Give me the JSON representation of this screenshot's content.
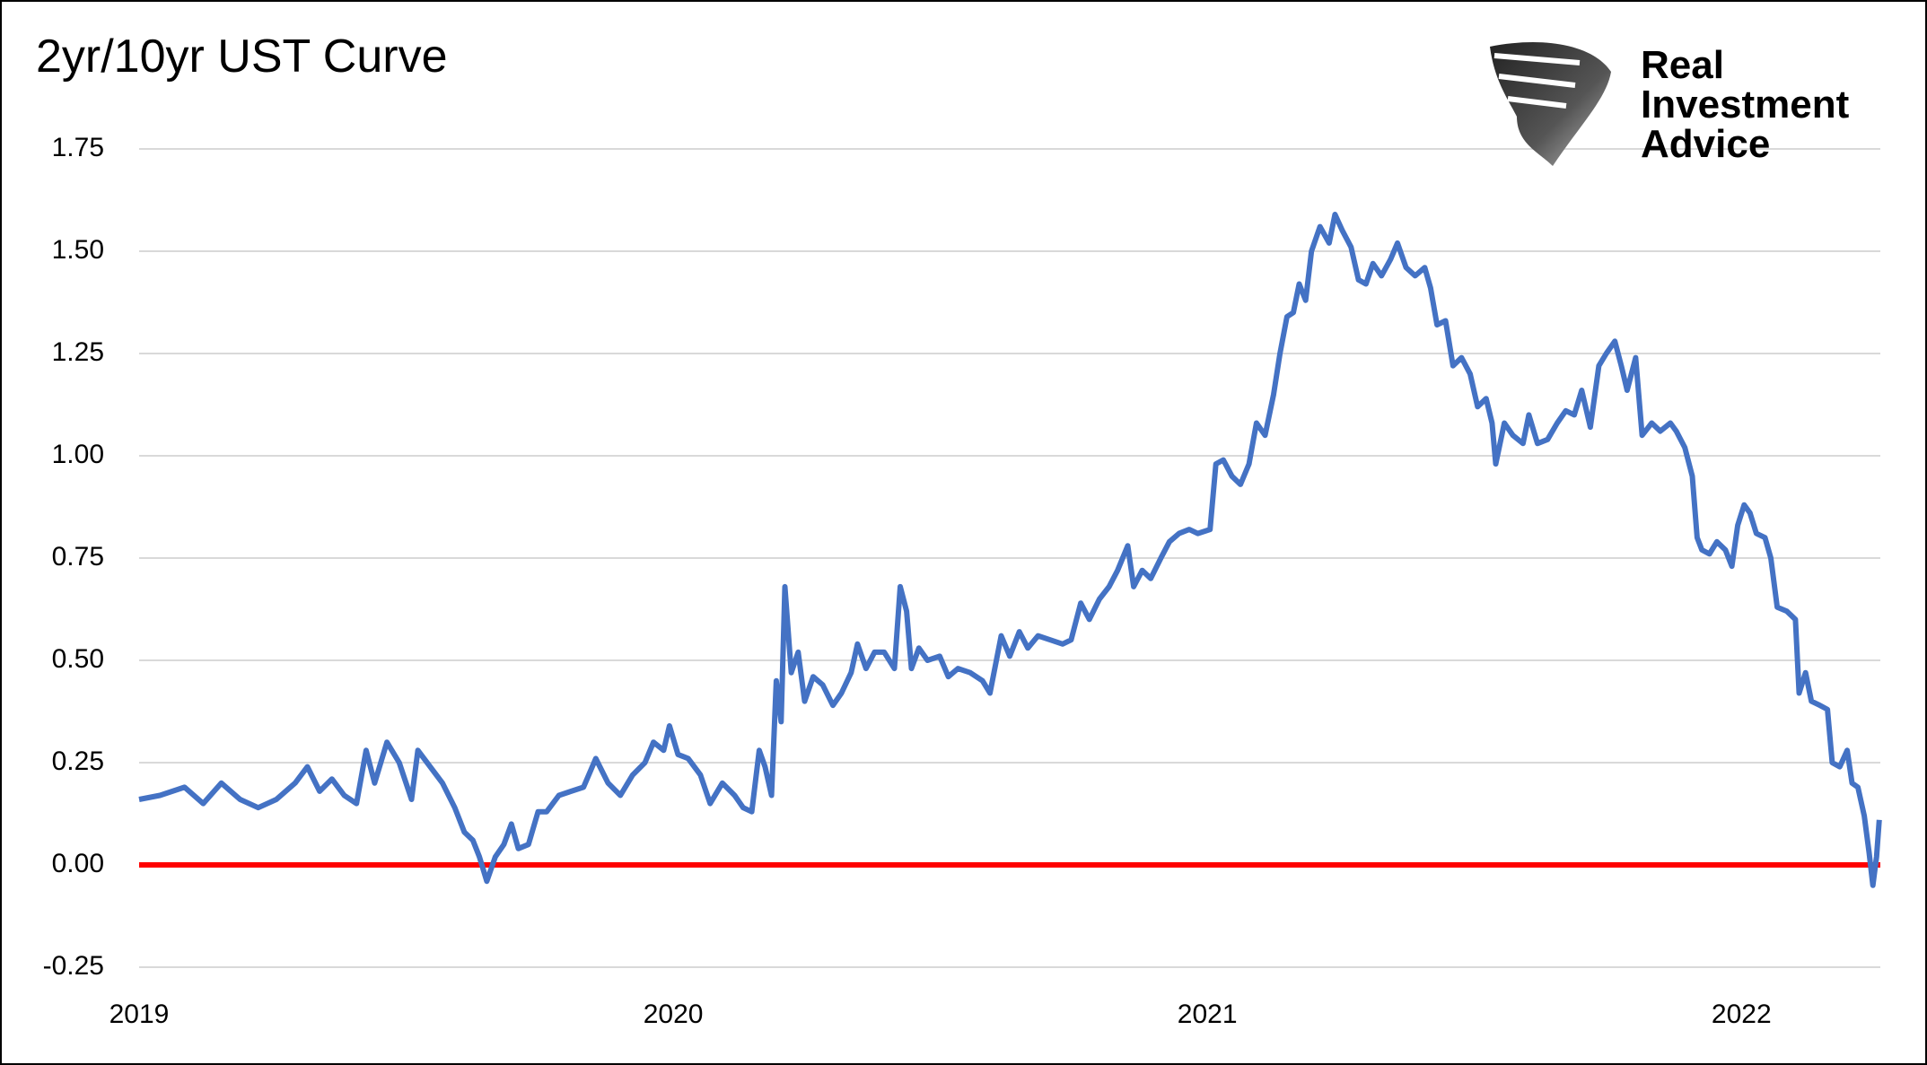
{
  "chart_data": {
    "type": "line",
    "title": "2yr/10yr UST Curve",
    "logo_text": [
      "Real",
      "Investment",
      "Advice"
    ],
    "xlim": [
      2019,
      2022.26
    ],
    "xticks": [
      2019,
      2020,
      2021,
      2022
    ],
    "ylim": [
      -0.25,
      1.75
    ],
    "yticks": [
      {
        "value": -0.25,
        "label": "-0.25"
      },
      {
        "value": 0,
        "label": "0.00"
      },
      {
        "value": 0.25,
        "label": "0.25"
      },
      {
        "value": 0.5,
        "label": "0.50"
      },
      {
        "value": 0.75,
        "label": "0.75"
      },
      {
        "value": 1,
        "label": "1.00"
      },
      {
        "value": 1.25,
        "label": "1.25"
      },
      {
        "value": 1.5,
        "label": "1.50"
      },
      {
        "value": 1.75,
        "label": "1.75"
      }
    ],
    "grid": true,
    "reference_line": {
      "value": 0,
      "color": "#ff0000"
    },
    "x": [
      2019.0,
      2019.039,
      2019.085,
      2019.12,
      2019.154,
      2019.189,
      2019.223,
      2019.257,
      2019.292,
      2019.315,
      2019.338,
      2019.361,
      2019.384,
      2019.407,
      2019.425,
      2019.441,
      2019.464,
      2019.487,
      2019.51,
      2019.522,
      2019.545,
      2019.568,
      2019.591,
      2019.609,
      2019.625,
      2019.637,
      2019.651,
      2019.667,
      2019.683,
      2019.697,
      2019.71,
      2019.729,
      2019.747,
      2019.763,
      2019.786,
      2019.809,
      2019.832,
      2019.855,
      2019.878,
      2019.901,
      2019.924,
      2019.947,
      2019.963,
      2019.982,
      2019.993,
      2020.009,
      2020.028,
      2020.051,
      2020.069,
      2020.092,
      2020.115,
      2020.131,
      2020.147,
      2020.161,
      2020.172,
      2020.184,
      2020.193,
      2020.202,
      2020.209,
      2020.221,
      2020.234,
      2020.246,
      2020.262,
      2020.28,
      2020.299,
      2020.315,
      2020.333,
      2020.345,
      2020.361,
      2020.377,
      2020.395,
      2020.414,
      2020.425,
      2020.437,
      2020.446,
      2020.46,
      2020.476,
      2020.499,
      2020.515,
      2020.533,
      2020.556,
      2020.579,
      2020.593,
      2020.614,
      2020.63,
      2020.648,
      2020.664,
      2020.683,
      2020.706,
      2020.729,
      2020.745,
      2020.763,
      2020.779,
      2020.798,
      2020.816,
      2020.832,
      2020.851,
      2020.862,
      2020.878,
      2020.894,
      2020.913,
      2020.929,
      2020.947,
      2020.966,
      2020.982,
      2021.005,
      2021.016,
      2021.03,
      2021.046,
      2021.062,
      2021.078,
      2021.092,
      2021.108,
      2021.124,
      2021.136,
      2021.149,
      2021.161,
      2021.172,
      2021.184,
      2021.195,
      2021.211,
      2021.228,
      2021.239,
      2021.253,
      2021.269,
      2021.283,
      2021.297,
      2021.31,
      2021.326,
      2021.343,
      2021.356,
      2021.372,
      2021.389,
      2021.407,
      2021.418,
      2021.43,
      2021.446,
      2021.46,
      2021.476,
      2021.492,
      2021.506,
      2021.522,
      2021.533,
      2021.54,
      2021.556,
      2021.572,
      2021.591,
      2021.602,
      2021.618,
      2021.637,
      2021.655,
      2021.671,
      2021.687,
      2021.701,
      2021.717,
      2021.733,
      2021.747,
      2021.763,
      2021.775,
      2021.786,
      2021.802,
      2021.814,
      2021.832,
      2021.848,
      2021.867,
      2021.878,
      2021.894,
      2021.908,
      2021.917,
      2021.926,
      2021.94,
      2021.954,
      2021.97,
      2021.982,
      2021.993,
      2022.005,
      2022.016,
      2022.028,
      2022.044,
      2022.055,
      2022.067,
      2022.085,
      2022.101,
      2022.108,
      2022.12,
      2022.131,
      2022.147,
      2022.161,
      2022.17,
      2022.184,
      2022.198,
      2022.207,
      2022.218,
      2022.23,
      2022.239,
      2022.246,
      2022.253,
      2022.258
    ],
    "series": [
      {
        "color": "#4472c4",
        "values": [
          0.16,
          0.17,
          0.19,
          0.15,
          0.2,
          0.16,
          0.14,
          0.16,
          0.2,
          0.24,
          0.18,
          0.21,
          0.17,
          0.15,
          0.28,
          0.2,
          0.3,
          0.25,
          0.16,
          0.28,
          0.24,
          0.2,
          0.14,
          0.08,
          0.06,
          0.02,
          -0.04,
          0.02,
          0.05,
          0.1,
          0.04,
          0.05,
          0.13,
          0.13,
          0.17,
          0.18,
          0.19,
          0.26,
          0.2,
          0.17,
          0.22,
          0.25,
          0.3,
          0.28,
          0.34,
          0.27,
          0.26,
          0.22,
          0.15,
          0.2,
          0.17,
          0.14,
          0.13,
          0.28,
          0.24,
          0.17,
          0.45,
          0.35,
          0.68,
          0.47,
          0.52,
          0.4,
          0.46,
          0.44,
          0.39,
          0.42,
          0.47,
          0.54,
          0.48,
          0.52,
          0.52,
          0.48,
          0.68,
          0.62,
          0.48,
          0.53,
          0.5,
          0.51,
          0.46,
          0.48,
          0.47,
          0.45,
          0.42,
          0.56,
          0.51,
          0.57,
          0.53,
          0.56,
          0.55,
          0.54,
          0.55,
          0.64,
          0.6,
          0.65,
          0.68,
          0.72,
          0.78,
          0.68,
          0.72,
          0.7,
          0.75,
          0.79,
          0.81,
          0.82,
          0.81,
          0.82,
          0.98,
          0.99,
          0.95,
          0.93,
          0.98,
          1.08,
          1.05,
          1.15,
          1.25,
          1.34,
          1.35,
          1.42,
          1.38,
          1.5,
          1.56,
          1.52,
          1.59,
          1.55,
          1.51,
          1.43,
          1.42,
          1.47,
          1.44,
          1.48,
          1.52,
          1.46,
          1.44,
          1.46,
          1.41,
          1.32,
          1.33,
          1.22,
          1.24,
          1.2,
          1.12,
          1.14,
          1.08,
          0.98,
          1.08,
          1.05,
          1.03,
          1.1,
          1.03,
          1.04,
          1.08,
          1.11,
          1.1,
          1.16,
          1.07,
          1.22,
          1.25,
          1.28,
          1.22,
          1.16,
          1.24,
          1.05,
          1.08,
          1.06,
          1.08,
          1.06,
          1.02,
          0.95,
          0.8,
          0.77,
          0.76,
          0.79,
          0.77,
          0.73,
          0.83,
          0.88,
          0.86,
          0.81,
          0.8,
          0.75,
          0.63,
          0.62,
          0.6,
          0.42,
          0.47,
          0.4,
          0.39,
          0.38,
          0.25,
          0.24,
          0.28,
          0.2,
          0.19,
          0.12,
          0.03,
          -0.05,
          0.02,
          0.11
        ]
      }
    ]
  }
}
